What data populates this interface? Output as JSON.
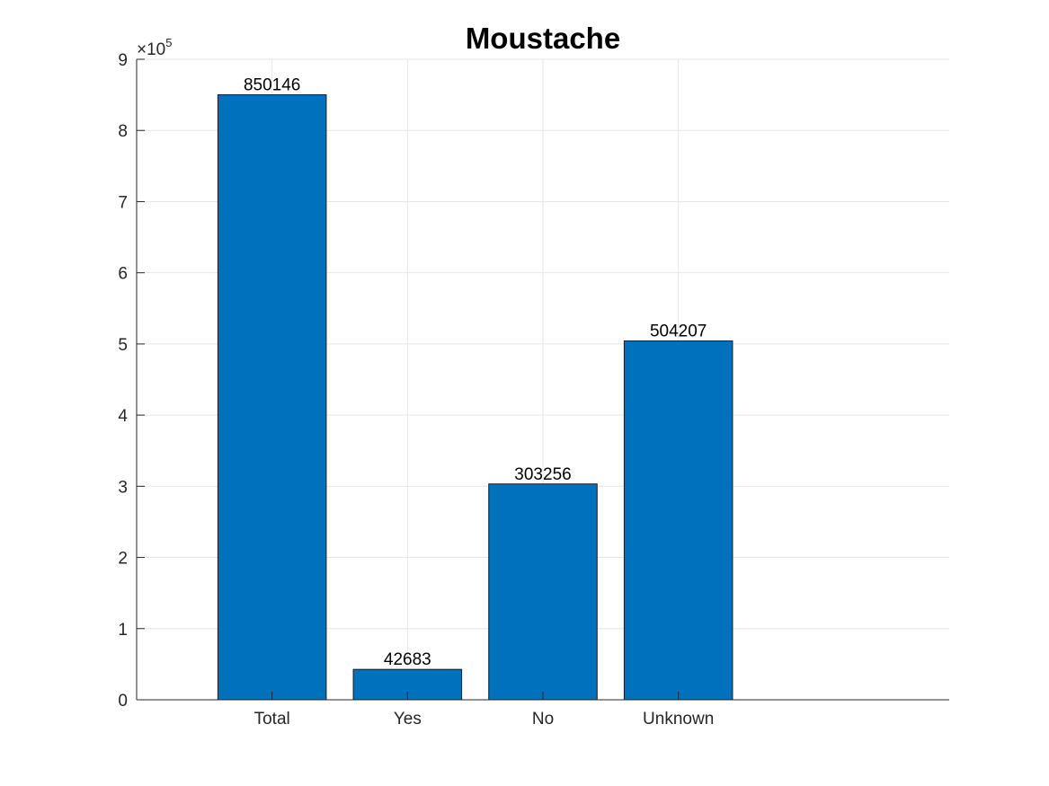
{
  "chart_data": {
    "type": "bar",
    "title": "Moustache",
    "categories": [
      "Total",
      "Yes",
      "No",
      "Unknown"
    ],
    "values": [
      850146,
      42683,
      303256,
      504207
    ],
    "data_labels": [
      "850146",
      "42683",
      "303256",
      "504207"
    ],
    "xlabel": "",
    "ylabel": "",
    "ylim": [
      0,
      900000
    ],
    "xlim": [
      0,
      6
    ],
    "x_positions": [
      1,
      2,
      3,
      4
    ],
    "y_ticks": [
      0,
      100000,
      200000,
      300000,
      400000,
      500000,
      600000,
      700000,
      800000,
      900000
    ],
    "y_tick_labels": [
      "0",
      "1",
      "2",
      "3",
      "4",
      "5",
      "6",
      "7",
      "8",
      "9"
    ],
    "y_exponent": {
      "prefix": "×10",
      "power": "5"
    },
    "grid": true,
    "legend": "none",
    "colors": {
      "bar": "#0072bd",
      "grid": "#e6e6e6",
      "axis": "#262626"
    }
  }
}
